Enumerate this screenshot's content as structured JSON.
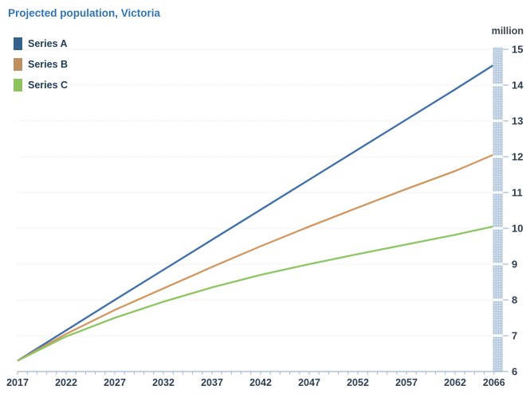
{
  "title": "Projected population, Victoria",
  "unit_label": "million",
  "colors": {
    "title": "#2e74b6",
    "axis": "#9fb8d1",
    "grid": "#d9d9d9",
    "tick_label": "#2d3e50",
    "unit_label": "#3d4650",
    "legend_label": "#1f3a54",
    "band_bg": "#cddbe9",
    "band_dot": "#9db9d6"
  },
  "legend": {
    "items": [
      {
        "label": "Series A",
        "swatch_color": "#35618e"
      },
      {
        "label": "Series B",
        "swatch_color": "#c08f5e"
      },
      {
        "label": "Series C",
        "swatch_color": "#8cc35c"
      }
    ]
  },
  "chart_data": {
    "type": "line",
    "title": "Projected population, Victoria",
    "ylabel": "million",
    "xlabel": "",
    "ylim": [
      6,
      15
    ],
    "yticks": [
      6,
      7,
      8,
      9,
      10,
      11,
      12,
      13,
      14,
      15
    ],
    "xlim": [
      2017,
      2066
    ],
    "x": [
      2017,
      2022,
      2027,
      2032,
      2037,
      2042,
      2047,
      2052,
      2057,
      2062,
      2066
    ],
    "xtick_labels": [
      "2017",
      "2022",
      "2027",
      "2032",
      "2037",
      "2042",
      "2047",
      "2052",
      "2057",
      "2062",
      "2066"
    ],
    "minor_xticks_every_year": true,
    "grid": "horizontal dotted",
    "legend_position": "top-left",
    "y_axis_side": "right",
    "end_year_highlight_band": 2066,
    "series": [
      {
        "name": "Series A",
        "color": "#3f6fa8",
        "values": [
          6.3,
          7.15,
          8.0,
          8.84,
          9.68,
          10.52,
          11.36,
          12.2,
          13.04,
          13.88,
          14.55
        ]
      },
      {
        "name": "Series B",
        "color": "#d0975f",
        "values": [
          6.3,
          7.05,
          7.72,
          8.32,
          8.92,
          9.5,
          10.05,
          10.58,
          11.1,
          11.6,
          12.05
        ]
      },
      {
        "name": "Series C",
        "color": "#8dc662",
        "values": [
          6.3,
          6.98,
          7.5,
          7.95,
          8.35,
          8.7,
          9.0,
          9.28,
          9.55,
          9.82,
          10.05
        ]
      }
    ]
  }
}
